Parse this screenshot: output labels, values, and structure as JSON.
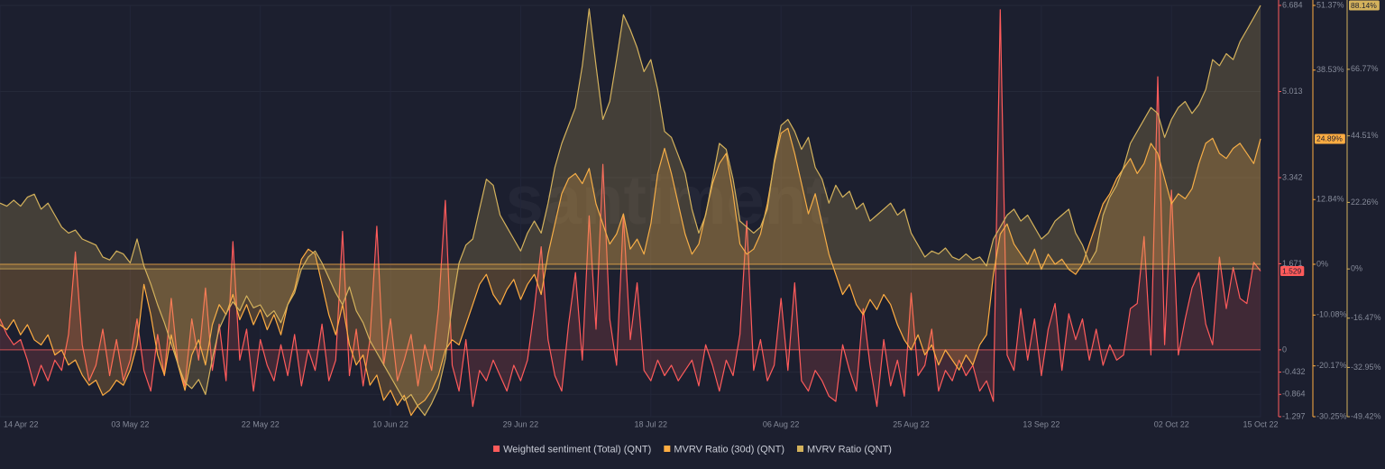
{
  "chart_data": {
    "type": "area",
    "watermark": "santiment",
    "categories": [
      "14 Apr 22",
      null,
      null,
      null,
      null,
      null,
      null,
      null,
      null,
      null,
      null,
      null,
      null,
      null,
      null,
      null,
      null,
      null,
      null,
      "03 May 22",
      null,
      null,
      null,
      null,
      null,
      null,
      null,
      null,
      null,
      null,
      null,
      null,
      null,
      null,
      null,
      null,
      null,
      null,
      "22 May 22",
      null,
      null,
      null,
      null,
      null,
      null,
      null,
      null,
      null,
      null,
      null,
      null,
      null,
      null,
      null,
      null,
      null,
      null,
      "10 Jun 22",
      null,
      null,
      null,
      null,
      null,
      null,
      null,
      null,
      null,
      null,
      null,
      null,
      null,
      null,
      null,
      null,
      null,
      null,
      "29 Jun 22",
      null,
      null,
      null,
      null,
      null,
      null,
      null,
      null,
      null,
      null,
      null,
      null,
      null,
      null,
      null,
      null,
      null,
      null,
      "18 Jul 22",
      null,
      null,
      null,
      null,
      null,
      null,
      null,
      null,
      null,
      null,
      null,
      null,
      null,
      null,
      null,
      null,
      null,
      null,
      "06 Aug 22",
      null,
      null,
      null,
      null,
      null,
      null,
      null,
      null,
      null,
      null,
      null,
      null,
      null,
      null,
      null,
      null,
      null,
      null,
      "25 Aug 22",
      null,
      null,
      null,
      null,
      null,
      null,
      null,
      null,
      null,
      null,
      null,
      null,
      null,
      null,
      null,
      null,
      null,
      null,
      "13 Sep 22",
      null,
      null,
      null,
      null,
      null,
      null,
      null,
      null,
      null,
      null,
      null,
      null,
      null,
      null,
      null,
      null,
      null,
      null,
      "02 Oct 22",
      null,
      null,
      null,
      null,
      null,
      null,
      null,
      null,
      null,
      null,
      null,
      null,
      "15 Oct 22"
    ],
    "ylim": [
      -1.297,
      6.684
    ],
    "yticks": [
      6.684,
      5.013,
      3.342,
      1.671,
      0,
      -0.432,
      -0.864,
      -1.297
    ],
    "y2lim": [
      -30.25,
      51.37
    ],
    "y2ticks": [
      {
        "value": 51.37,
        "label": "51.37%"
      },
      {
        "value": 38.53,
        "label": "38.53%"
      },
      {
        "value": 12.84,
        "label": "12.84%"
      },
      {
        "value": 0,
        "label": "0%"
      },
      {
        "value": -10.08,
        "label": "-10.08%"
      },
      {
        "value": -20.17,
        "label": "-20.17%"
      },
      {
        "value": -30.25,
        "label": "-30.25%"
      }
    ],
    "y3lim": [
      -49.42,
      88.14
    ],
    "y3ticks": [
      {
        "value": 66.77,
        "label": "66.77%"
      },
      {
        "value": 44.51,
        "label": "44.51%"
      },
      {
        "value": 22.26,
        "label": "22.26%"
      },
      {
        "value": 0,
        "label": "0%"
      },
      {
        "value": -16.47,
        "label": "-16.47%"
      },
      {
        "value": -32.95,
        "label": "-32.95%"
      },
      {
        "value": -49.42,
        "label": "-49.42%"
      }
    ],
    "grid": true,
    "legend": "bottom",
    "series": [
      {
        "name": "Weighted sentiment (Total) (QNT)",
        "color": "#ff5b5b",
        "axis": "y",
        "current_label": "1.529",
        "values": [
          0.6,
          0.3,
          0.1,
          0.2,
          -0.2,
          -0.7,
          -0.3,
          -0.6,
          -0.2,
          -0.4,
          0.3,
          1.9,
          0.1,
          -0.6,
          -0.3,
          0.4,
          -0.5,
          0.2,
          -0.6,
          -0.2,
          0.6,
          -0.4,
          -0.8,
          0.3,
          -0.5,
          1.0,
          -0.3,
          -0.7,
          0.6,
          -0.2,
          1.2,
          -0.4,
          0.5,
          -0.6,
          2.1,
          -0.2,
          0.4,
          -0.8,
          0.2,
          -0.3,
          -0.6,
          0.1,
          -0.5,
          0.3,
          -0.7,
          0.0,
          -0.4,
          0.5,
          -0.6,
          -0.2,
          2.3,
          -0.5,
          0.4,
          -0.7,
          0.2,
          2.4,
          -0.3,
          0.6,
          -0.6,
          -0.2,
          0.3,
          -0.7,
          0.1,
          -0.4,
          0.8,
          2.9,
          -0.3,
          -0.8,
          0.2,
          -1.1,
          -0.4,
          -0.6,
          -0.2,
          -0.5,
          -0.8,
          -0.3,
          -0.6,
          -0.2,
          0.8,
          2.0,
          0.2,
          -0.5,
          -0.8,
          0.5,
          1.5,
          -0.2,
          2.6,
          0.4,
          3.6,
          0.6,
          -0.3,
          2.6,
          0.2,
          1.3,
          -0.4,
          -0.6,
          -0.2,
          -0.5,
          -0.3,
          -0.6,
          -0.4,
          -0.2,
          -0.7,
          0.1,
          -0.3,
          -0.8,
          -0.2,
          -0.5,
          0.3,
          2.5,
          -0.4,
          0.2,
          -0.6,
          -0.3,
          1.0,
          -0.4,
          1.3,
          -0.6,
          -0.8,
          -0.4,
          -0.6,
          -0.9,
          -1.0,
          0.1,
          -0.4,
          -0.8,
          0.8,
          -0.3,
          -1.1,
          0.2,
          -0.7,
          -0.2,
          -0.9,
          1.1,
          -0.5,
          -0.3,
          0.4,
          -0.8,
          -0.4,
          -0.6,
          -0.2,
          -0.5,
          -0.3,
          -0.8,
          -0.6,
          -1.0,
          6.6,
          -0.1,
          -0.4,
          0.8,
          -0.2,
          0.6,
          -0.5,
          0.4,
          0.9,
          -0.4,
          0.7,
          0.2,
          0.6,
          -0.2,
          0.4,
          -0.3,
          0.1,
          -0.2,
          -0.1,
          0.8,
          0.9,
          2.2,
          -0.1,
          5.3,
          0.1,
          3.1,
          -0.1,
          0.6,
          1.2,
          1.5,
          0.5,
          0.1,
          1.8,
          0.8,
          1.6,
          1.0,
          0.9,
          1.7,
          1.529
        ]
      },
      {
        "name": "MVRV Ratio (30d) (QNT)",
        "color": "#ffad42",
        "axis": "y2",
        "current_label": "24.89%",
        "values": [
          -12,
          -13,
          -11,
          -14,
          -12,
          -15,
          -16,
          -14,
          -18,
          -17,
          -20,
          -19,
          -22,
          -24,
          -23,
          -26,
          -25,
          -23,
          -24,
          -21,
          -16,
          -4,
          -10,
          -18,
          -22,
          -14,
          -20,
          -25,
          -18,
          -15,
          -20,
          -12,
          -8,
          -10,
          -6,
          -11,
          -8,
          -12,
          -9,
          -13,
          -10,
          -14,
          -8,
          -5,
          1,
          3,
          2,
          -4,
          -10,
          -14,
          -8,
          -16,
          -20,
          -18,
          -24,
          -22,
          -27,
          -25,
          -28,
          -26,
          -30,
          -28,
          -27,
          -25,
          -22,
          -17,
          -15,
          -16,
          -12,
          -8,
          -4,
          -2,
          -6,
          -8,
          -5,
          -3,
          -7,
          -4,
          -2,
          -6,
          2,
          8,
          14,
          17,
          18,
          16,
          19,
          12,
          8,
          4,
          6,
          10,
          3,
          5,
          2,
          8,
          18,
          23,
          18,
          12,
          6,
          2,
          4,
          10,
          16,
          20,
          22,
          14,
          4,
          2,
          3,
          6,
          12,
          20,
          26,
          27,
          22,
          16,
          10,
          14,
          8,
          2,
          -2,
          -6,
          -4,
          -8,
          -10,
          -7,
          -9,
          -6,
          -8,
          -12,
          -15,
          -17,
          -14,
          -18,
          -16,
          -20,
          -17,
          -19,
          -21,
          -18,
          -20,
          -16,
          -14,
          -2,
          6,
          8,
          4,
          2,
          0,
          3,
          -1,
          2,
          0,
          1,
          -1,
          -2,
          0,
          4,
          8,
          12,
          14,
          17,
          19,
          21,
          18,
          20,
          24,
          22,
          17,
          12,
          14,
          13,
          15,
          20,
          24,
          25,
          22,
          21,
          23,
          24,
          22,
          20,
          24.89
        ]
      },
      {
        "name": "MVRV Ratio (QNT)",
        "color": "#d4b25c",
        "axis": "y3",
        "current_label": "88.14%",
        "values": [
          22,
          21,
          23,
          21,
          24,
          25,
          20,
          22,
          18,
          14,
          12,
          13,
          10,
          9,
          8,
          4,
          3,
          6,
          5,
          2,
          10,
          1,
          -5,
          -12,
          -18,
          -25,
          -32,
          -38,
          -40,
          -37,
          -42,
          -30,
          -20,
          -15,
          -11,
          -14,
          -9,
          -13,
          -12,
          -16,
          -14,
          -18,
          -12,
          -8,
          0,
          4,
          6,
          2,
          -3,
          -8,
          -12,
          -6,
          -14,
          -18,
          -24,
          -28,
          -32,
          -36,
          -40,
          -44,
          -42,
          -46,
          -49,
          -45,
          -40,
          -30,
          -12,
          2,
          8,
          10,
          20,
          30,
          28,
          18,
          14,
          10,
          6,
          12,
          16,
          12,
          22,
          34,
          42,
          48,
          54,
          68,
          87,
          68,
          50,
          56,
          70,
          85,
          80,
          74,
          66,
          70,
          60,
          46,
          44,
          38,
          32,
          20,
          12,
          18,
          30,
          42,
          40,
          30,
          16,
          14,
          12,
          14,
          20,
          36,
          48,
          50,
          46,
          40,
          44,
          34,
          30,
          22,
          28,
          24,
          26,
          20,
          22,
          16,
          18,
          20,
          22,
          18,
          20,
          12,
          8,
          4,
          6,
          5,
          7,
          4,
          3,
          5,
          3,
          4,
          1,
          10,
          14,
          18,
          20,
          16,
          18,
          14,
          10,
          12,
          16,
          18,
          20,
          12,
          8,
          2,
          6,
          18,
          24,
          28,
          34,
          42,
          46,
          50,
          54,
          52,
          44,
          50,
          54,
          56,
          52,
          55,
          60,
          70,
          68,
          72,
          70,
          76,
          80,
          84,
          88.14
        ]
      }
    ]
  }
}
